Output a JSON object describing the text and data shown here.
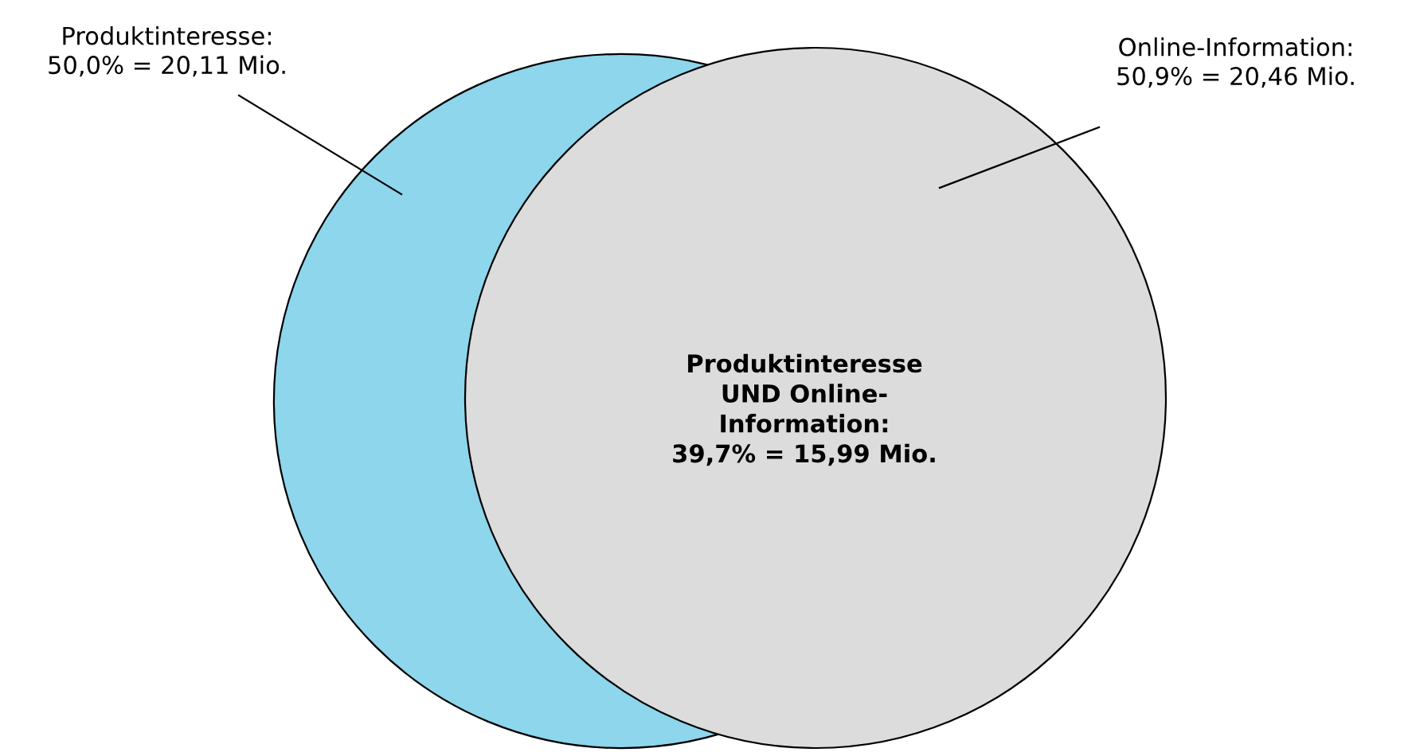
{
  "chart_data": {
    "type": "other",
    "values": [
      50.0,
      50.9,
      39.7
    ],
    "value_labels": [
      "Produktinteresse:\n50,0% = 20,11 Mio.",
      "Online-Information:\n50,9% = 20,46 Mio.",
      "Produktinteresse\nUND Online-\nInformation:\n39,7% = 15,99 Mio."
    ],
    "colors": [
      "#8dd6ec",
      "#dcdcdc",
      "#dcdcdc"
    ]
  }
}
